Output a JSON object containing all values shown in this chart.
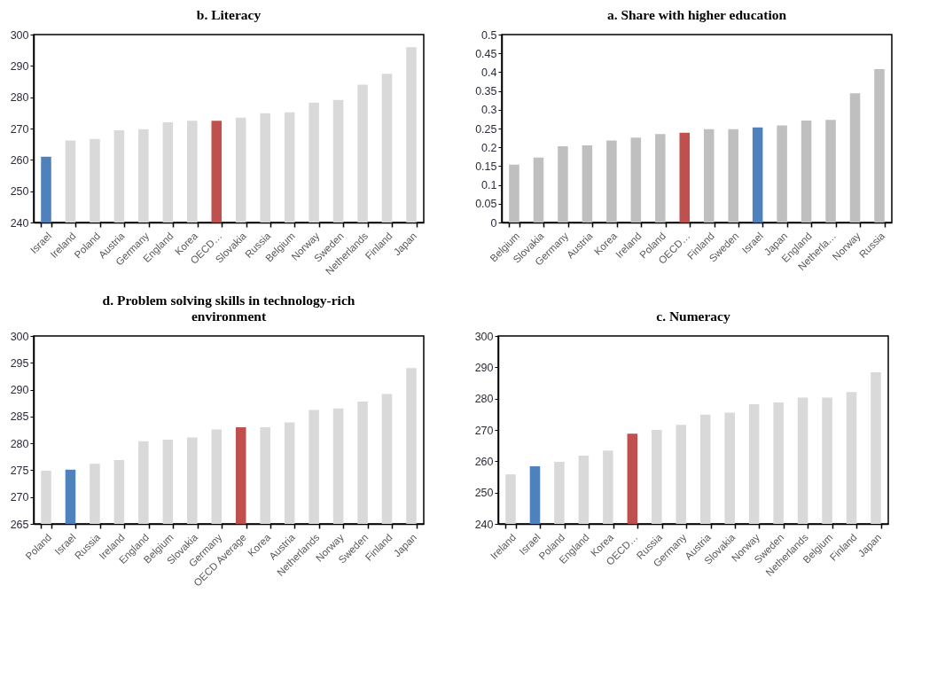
{
  "chart_data": [
    {
      "type": "bar",
      "title": "b. Literacy",
      "categories": [
        "Israel",
        "Ireland",
        "Poland",
        "Austria",
        "Germany",
        "England",
        "Korea",
        "OECD…",
        "Slovakia",
        "Russia",
        "Belgium",
        "Norway",
        "Sweden",
        "Netherlands",
        "Finland",
        "Japan"
      ],
      "values": [
        261.0,
        266.2,
        266.7,
        269.4,
        269.8,
        272.0,
        272.5,
        272.5,
        273.5,
        274.9,
        275.2,
        278.3,
        279.1,
        284.0,
        287.5,
        296.0
      ],
      "colors": [
        "#4f81bd",
        "#d9d9d9",
        "#d9d9d9",
        "#d9d9d9",
        "#d9d9d9",
        "#d9d9d9",
        "#d9d9d9",
        "#c0504d",
        "#d9d9d9",
        "#d9d9d9",
        "#d9d9d9",
        "#d9d9d9",
        "#d9d9d9",
        "#d9d9d9",
        "#d9d9d9",
        "#d9d9d9"
      ],
      "ylim": [
        240,
        300
      ],
      "yticks": [
        240,
        250,
        260,
        270,
        280,
        290,
        300
      ]
    },
    {
      "type": "bar",
      "title": "a. Share with higher education",
      "categories": [
        "Belgium",
        "Slovakia",
        "Germany",
        "Austria",
        "Korea",
        "Ireland",
        "Poland",
        "OECD…",
        "Finland",
        "Sweden",
        "Israel",
        "Japan",
        "England",
        "Netherla…",
        "Norway",
        "Russia"
      ],
      "values": [
        0.154,
        0.173,
        0.203,
        0.205,
        0.218,
        0.226,
        0.235,
        0.239,
        0.248,
        0.248,
        0.253,
        0.258,
        0.271,
        0.273,
        0.344,
        0.408
      ],
      "colors": [
        "#bfbfbf",
        "#bfbfbf",
        "#bfbfbf",
        "#bfbfbf",
        "#bfbfbf",
        "#bfbfbf",
        "#bfbfbf",
        "#c0504d",
        "#bfbfbf",
        "#bfbfbf",
        "#4f81bd",
        "#bfbfbf",
        "#bfbfbf",
        "#bfbfbf",
        "#bfbfbf",
        "#bfbfbf"
      ],
      "ylim": [
        0,
        0.5
      ],
      "yticks": [
        0,
        0.05,
        0.1,
        0.15,
        0.2,
        0.25,
        0.3,
        0.35,
        0.4,
        0.45,
        0.5
      ]
    },
    {
      "type": "bar",
      "title": "d.  Problem solving skills in technology-rich environment",
      "categories": [
        "Poland",
        "Israel",
        "Russia",
        "Ireland",
        "England",
        "Belgium",
        "Slovakia",
        "Germany",
        "OECD Average",
        "Korea",
        "Austria",
        "Netherlands",
        "Norway",
        "Sweden",
        "Finland",
        "Japan"
      ],
      "values": [
        274.9,
        275.1,
        276.2,
        276.9,
        280.4,
        280.7,
        281.1,
        282.6,
        283.0,
        283.0,
        283.9,
        286.2,
        286.5,
        287.8,
        289.2,
        294.0
      ],
      "colors": [
        "#d9d9d9",
        "#4f81bd",
        "#d9d9d9",
        "#d9d9d9",
        "#d9d9d9",
        "#d9d9d9",
        "#d9d9d9",
        "#d9d9d9",
        "#c0504d",
        "#d9d9d9",
        "#d9d9d9",
        "#d9d9d9",
        "#d9d9d9",
        "#d9d9d9",
        "#d9d9d9",
        "#d9d9d9"
      ],
      "ylim": [
        265,
        300
      ],
      "yticks": [
        265,
        270,
        275,
        280,
        285,
        290,
        295,
        300
      ]
    },
    {
      "type": "bar",
      "title": "c. Numeracy",
      "categories": [
        "Ireland",
        "Israel",
        "Poland",
        "England",
        "Korea",
        "OECD…",
        "Russia",
        "Germany",
        "Austria",
        "Slovakia",
        "Norway",
        "Sweden",
        "Netherlands",
        "Belgium",
        "Finland",
        "Japan"
      ],
      "values": [
        255.8,
        258.4,
        259.8,
        261.8,
        263.4,
        268.8,
        270.0,
        271.6,
        274.9,
        275.5,
        278.2,
        278.8,
        280.3,
        280.3,
        282.1,
        288.4
      ],
      "colors": [
        "#d9d9d9",
        "#4f81bd",
        "#d9d9d9",
        "#d9d9d9",
        "#d9d9d9",
        "#c0504d",
        "#d9d9d9",
        "#d9d9d9",
        "#d9d9d9",
        "#d9d9d9",
        "#d9d9d9",
        "#d9d9d9",
        "#d9d9d9",
        "#d9d9d9",
        "#d9d9d9",
        "#d9d9d9"
      ],
      "ylim": [
        240,
        300
      ],
      "yticks": [
        240,
        250,
        260,
        270,
        280,
        290,
        300
      ]
    }
  ]
}
